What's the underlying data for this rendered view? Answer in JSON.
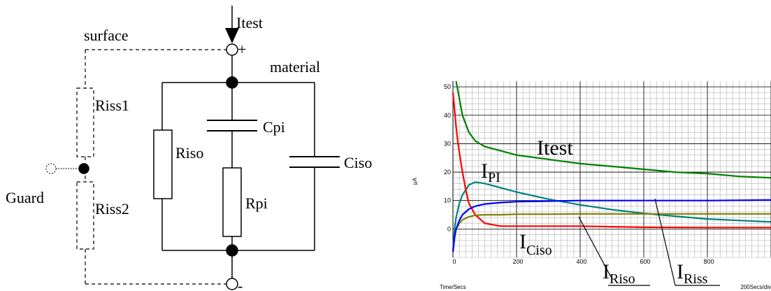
{
  "circuit": {
    "itest": "Itest",
    "plus": "+",
    "minus": "-",
    "surface": "surface",
    "material": "material",
    "riss1": "Riss1",
    "riss2": "Riss2",
    "guard": "Guard",
    "riso": "Riso",
    "cpi": "Cpi",
    "rpi": "Rpi",
    "ciso": "Ciso"
  },
  "chart": {
    "ylabel": "µA",
    "xlabel": "Time/Secs",
    "scale_note": "200Secs/div",
    "x_ticks": [
      "0",
      "200",
      "400",
      "600",
      "800"
    ],
    "y_ticks": [
      "50",
      "40",
      "30",
      "20",
      "10",
      "0"
    ],
    "annotations": {
      "itest": "Itest",
      "ipi_main": "I",
      "ipi_sub": "PI",
      "iciso_main": "I",
      "iciso_sub": "Ciso",
      "iriso_main": "I",
      "iriso_sub": "Riso",
      "iriss_main": "I",
      "iriss_sub": "Riss"
    }
  },
  "chart_data": {
    "type": "line",
    "xlim": [
      0,
      1000
    ],
    "ylim": [
      -10,
      52
    ],
    "xlabel": "Time/Secs",
    "ylabel": "µA",
    "grid": true,
    "series": [
      {
        "name": "Itest",
        "color": "#008000",
        "x": [
          10,
          20,
          30,
          50,
          70,
          100,
          150,
          200,
          300,
          400,
          500,
          600,
          700,
          800,
          900,
          1000
        ],
        "y": [
          52,
          46,
          40,
          34,
          31,
          29,
          27.5,
          26,
          24.5,
          23,
          22,
          21,
          20,
          19.5,
          18.5,
          18
        ]
      },
      {
        "name": "IPI",
        "color": "#008080",
        "x": [
          0,
          5,
          10,
          20,
          30,
          50,
          70,
          100,
          150,
          200,
          300,
          400,
          500,
          600,
          700,
          800,
          900,
          1000
        ],
        "y": [
          -8,
          0,
          4,
          9,
          12,
          15.5,
          16.5,
          16,
          14.5,
          13,
          10.5,
          8.5,
          6.8,
          5.5,
          4.5,
          3.5,
          3,
          2.5
        ]
      },
      {
        "name": "ICiso",
        "color": "#ff0000",
        "x": [
          0,
          5,
          10,
          15,
          20,
          30,
          40,
          50,
          70,
          100,
          150,
          200,
          400,
          600,
          800,
          1000
        ],
        "y": [
          48,
          42,
          36,
          31,
          27,
          20,
          14,
          9,
          5,
          2,
          1,
          1,
          1,
          0.6,
          0.5,
          0.5
        ]
      },
      {
        "name": "IRiso",
        "color": "#808000",
        "x": [
          0,
          5,
          10,
          20,
          30,
          50,
          70,
          100,
          150,
          200,
          300,
          400,
          600,
          800,
          1000
        ],
        "y": [
          -8,
          -3,
          0,
          2,
          3.2,
          4.3,
          4.8,
          5,
          5,
          5.2,
          5.2,
          5.3,
          5.3,
          5.3,
          5.3
        ]
      },
      {
        "name": "IRiss",
        "color": "#0000ff",
        "x": [
          0,
          5,
          10,
          20,
          30,
          50,
          70,
          100,
          150,
          200,
          300,
          400,
          600,
          800,
          1000
        ],
        "y": [
          -8,
          -3,
          0,
          3,
          5,
          7,
          8,
          8.8,
          9.3,
          9.6,
          9.8,
          10,
          10,
          10,
          10.2
        ]
      }
    ]
  }
}
